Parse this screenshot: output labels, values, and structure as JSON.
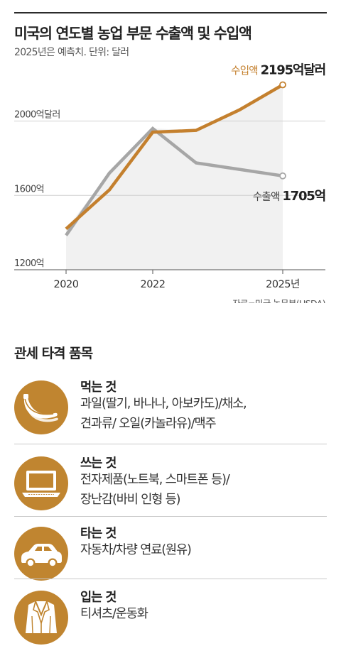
{
  "title": "미국의 연도별 농업 부문 수출액 및 수입액",
  "subtitle": "2025년은 예측치. 단위: 달러",
  "chart_data": {
    "type": "line",
    "x": [
      2020,
      2021,
      2022,
      2023,
      2024,
      2025
    ],
    "series": [
      {
        "name": "수입액",
        "values": [
          1420,
          1630,
          1940,
          1950,
          2060,
          2195
        ],
        "color": "#c4802e"
      },
      {
        "name": "수출액",
        "values": [
          1385,
          1720,
          1960,
          1775,
          1740,
          1705
        ],
        "color": "#a6a6a6"
      }
    ],
    "ylim": [
      1200,
      2300
    ],
    "yticks": [
      {
        "value": 1200,
        "label": "1200억"
      },
      {
        "value": 1600,
        "label": "1600억"
      },
      {
        "value": 2000,
        "label": "2000억달러"
      }
    ],
    "xticks": [
      {
        "value": 2020,
        "label": "2020"
      },
      {
        "value": 2022,
        "label": "2022"
      },
      {
        "value": 2025,
        "label": "2025년"
      }
    ],
    "end_labels": [
      {
        "series": "수입액",
        "name": "수입액",
        "value": "2195억달러"
      },
      {
        "series": "수출액",
        "name": "수출액",
        "value": "1705억"
      }
    ],
    "source": "자료=미국 농무부(USDA)"
  },
  "section_title": "관세 타격 품목",
  "categories": [
    {
      "name": "먹는 것",
      "icon": "banana-icon",
      "lines": [
        "과일(딸기, 바나나, 아보카도)/채소,",
        "견과류/ 오일(카놀라유)/맥주"
      ]
    },
    {
      "name": "쓰는 것",
      "icon": "laptop-icon",
      "lines": [
        "전자제품(노트북, 스마트폰 등)/",
        "장난감(바비 인형 등)"
      ]
    },
    {
      "name": "타는 것",
      "icon": "car-icon",
      "lines": [
        "자동차/차량 연료(원유)"
      ]
    },
    {
      "name": "입는 것",
      "icon": "jacket-icon",
      "lines": [
        "티셔츠/운동화"
      ]
    }
  ],
  "colors": {
    "accent": "#c08530",
    "import_line": "#c4802e",
    "export_line": "#a6a6a6",
    "plot_area": "#f1f1f1"
  }
}
